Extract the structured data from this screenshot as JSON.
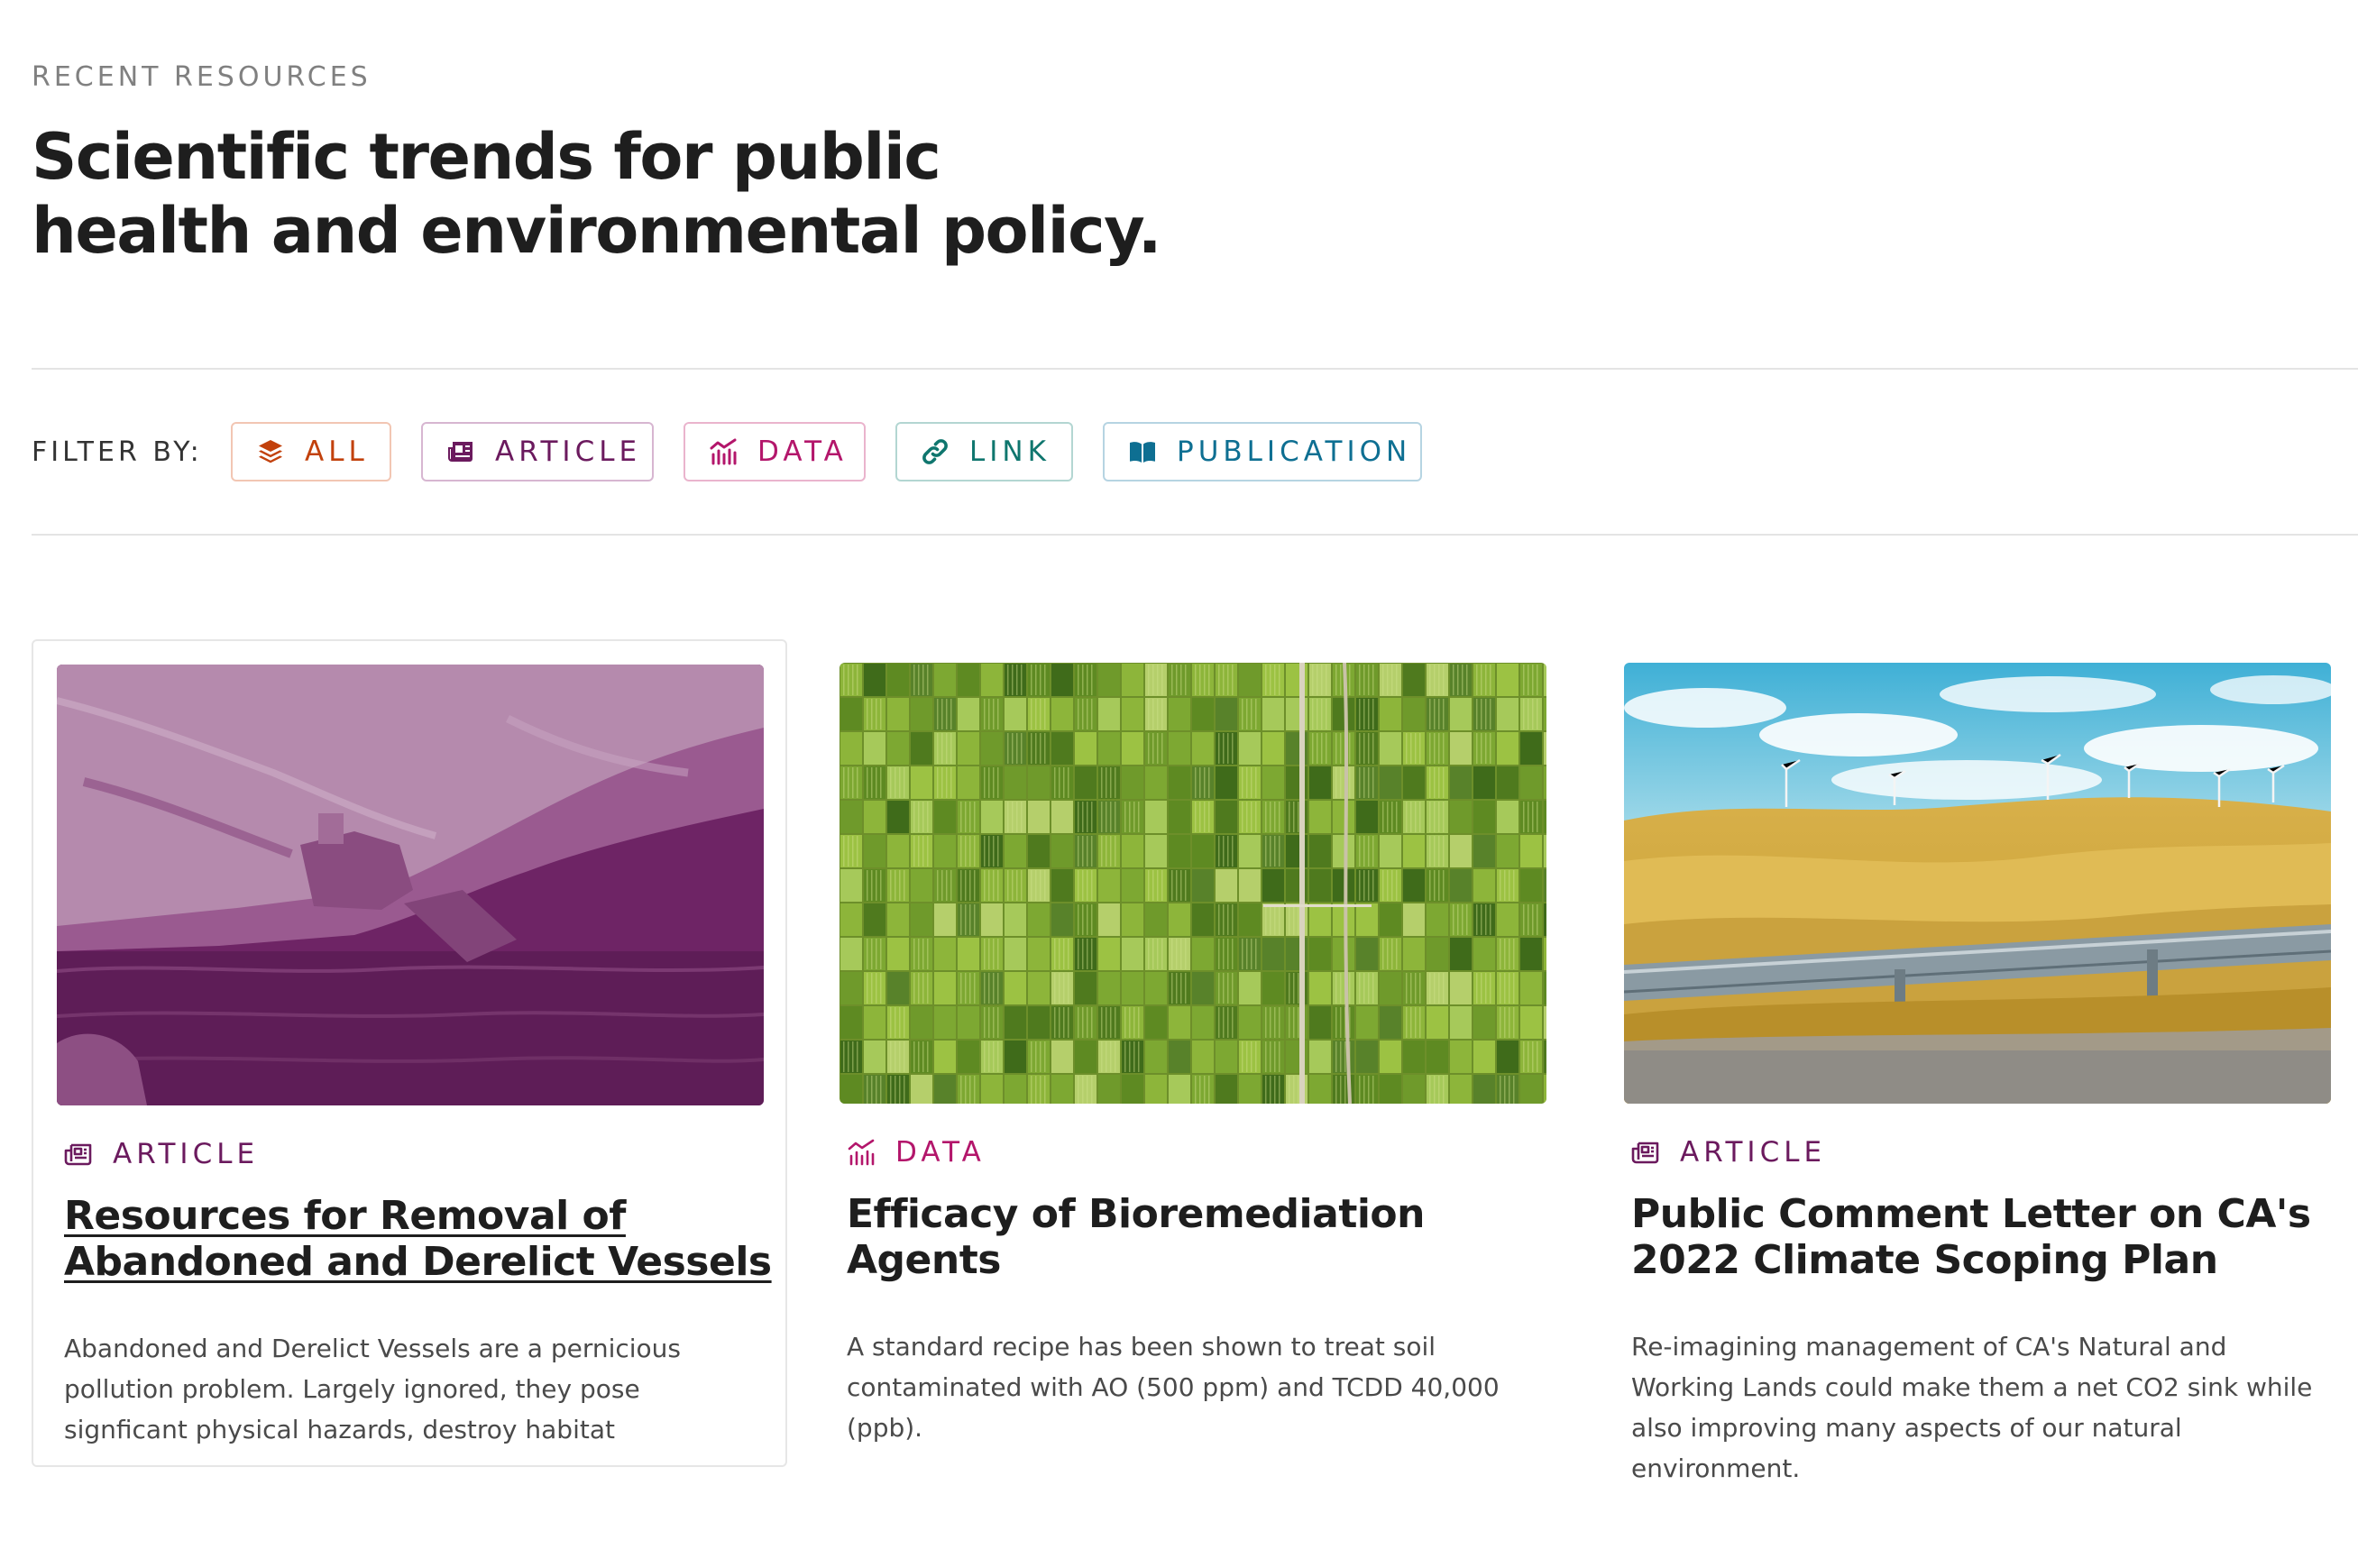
{
  "header": {
    "eyebrow": "RECENT RESOURCES",
    "headline_line1": "Scientific trends for public",
    "headline_line2": "health and environmental policy."
  },
  "filters": {
    "label": "FILTER BY:",
    "chips": [
      {
        "label": "ALL",
        "icon": "layers-icon",
        "color": "#c2410c",
        "border": "#f2c6b3"
      },
      {
        "label": "ARTICLE",
        "icon": "newspaper-icon",
        "color": "#6b1a5e",
        "border": "#d7b6d1"
      },
      {
        "label": "DATA",
        "icon": "chart-icon",
        "color": "#b3166b",
        "border": "#eab4cd"
      },
      {
        "label": "LINK",
        "icon": "link-icon",
        "color": "#0f766e",
        "border": "#b3d6d2"
      },
      {
        "label": "PUBLICATION",
        "icon": "book-icon",
        "color": "#0e6f92",
        "border": "#b6d4e2"
      }
    ]
  },
  "cards": [
    {
      "category": "ARTICLE",
      "category_icon": "newspaper-icon",
      "category_color": "#6b1a5e",
      "title_line1": "Resources for Removal of",
      "title_line2": "Abandoned and Derelict Vessels",
      "description": "Abandoned and Derelict Vessels are a pernicious pollution problem. Largely ignored, they pose signficant physical hazards, destroy habitat",
      "image": "shipwreck-photo"
    },
    {
      "category": "DATA",
      "category_icon": "chart-icon",
      "category_color": "#b3166b",
      "title_line1": "Efficacy of Bioremediation",
      "title_line2": "Agents",
      "description": "A standard recipe has been shown to treat soil contaminated with AO (500 ppm) and TCDD 40,000 (ppb).",
      "image": "farmland-aerial-photo"
    },
    {
      "category": "ARTICLE",
      "category_icon": "newspaper-icon",
      "category_color": "#6b1a5e",
      "title_line1": "Public Comment Letter on CA's",
      "title_line2": "2022 Climate Scoping Plan",
      "description": "Re-imagining management of CA's Natural and Working Lands could make them a net CO2 sink while also improving many aspects of our natural environment.",
      "image": "wind-farm-hills-photo"
    }
  ]
}
